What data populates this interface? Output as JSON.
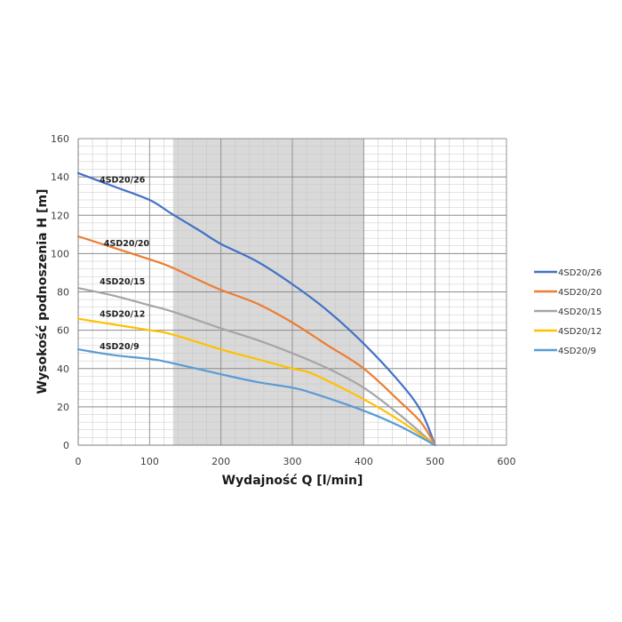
{
  "chart_data": {
    "type": "line",
    "title": "",
    "xlabel": "Wydajność Q [l/min]",
    "ylabel": "Wysokość podnoszenia H [m]",
    "xlim": [
      0,
      600
    ],
    "ylim": [
      0,
      160
    ],
    "x_ticks": [
      "0",
      "100",
      "200",
      "300",
      "400",
      "500",
      "600"
    ],
    "y_ticks": [
      "0",
      "20",
      "40",
      "60",
      "80",
      "100",
      "120",
      "140",
      "160"
    ],
    "grid": true,
    "legend_position": "right",
    "shaded_region": {
      "x_from": 133,
      "x_to": 400,
      "color": "#d9d9d9"
    },
    "series": [
      {
        "name": "4SD20/26",
        "color": "#4472c4",
        "label_at": [
          30,
          137
        ],
        "x": [
          0,
          50,
          100,
          130,
          170,
          200,
          250,
          300,
          350,
          400,
          450,
          480,
          500
        ],
        "y": [
          142,
          135,
          128,
          121,
          112,
          105,
          96,
          84,
          70,
          53,
          33,
          18,
          0
        ]
      },
      {
        "name": "4SD20/20",
        "color": "#ed7d31",
        "label_at": [
          36,
          104
        ],
        "x": [
          0,
          50,
          100,
          130,
          170,
          200,
          250,
          300,
          350,
          400,
          450,
          480,
          500
        ],
        "y": [
          109,
          103,
          97,
          93,
          86,
          81,
          74,
          64,
          52,
          40,
          23,
          12,
          0
        ]
      },
      {
        "name": "4SD20/15",
        "color": "#a5a5a5",
        "label_at": [
          30,
          84
        ],
        "x": [
          0,
          50,
          100,
          130,
          200,
          250,
          300,
          350,
          400,
          450,
          500
        ],
        "y": [
          82,
          78,
          73,
          70,
          61,
          55,
          48,
          40,
          30,
          16,
          0
        ]
      },
      {
        "name": "4SD20/12",
        "color": "#ffc000",
        "label_at": [
          30,
          67
        ],
        "x": [
          0,
          50,
          100,
          130,
          200,
          250,
          300,
          330,
          400,
          450,
          500
        ],
        "y": [
          66,
          63,
          60,
          58,
          50,
          45,
          40,
          37,
          24,
          13,
          0
        ]
      },
      {
        "name": "4SD20/9",
        "color": "#5b9bd5",
        "label_at": [
          30,
          50
        ],
        "x": [
          0,
          50,
          100,
          130,
          200,
          250,
          300,
          330,
          400,
          450,
          500
        ],
        "y": [
          50,
          47,
          45,
          43,
          37,
          33,
          30,
          27,
          18,
          10,
          0
        ]
      }
    ]
  }
}
